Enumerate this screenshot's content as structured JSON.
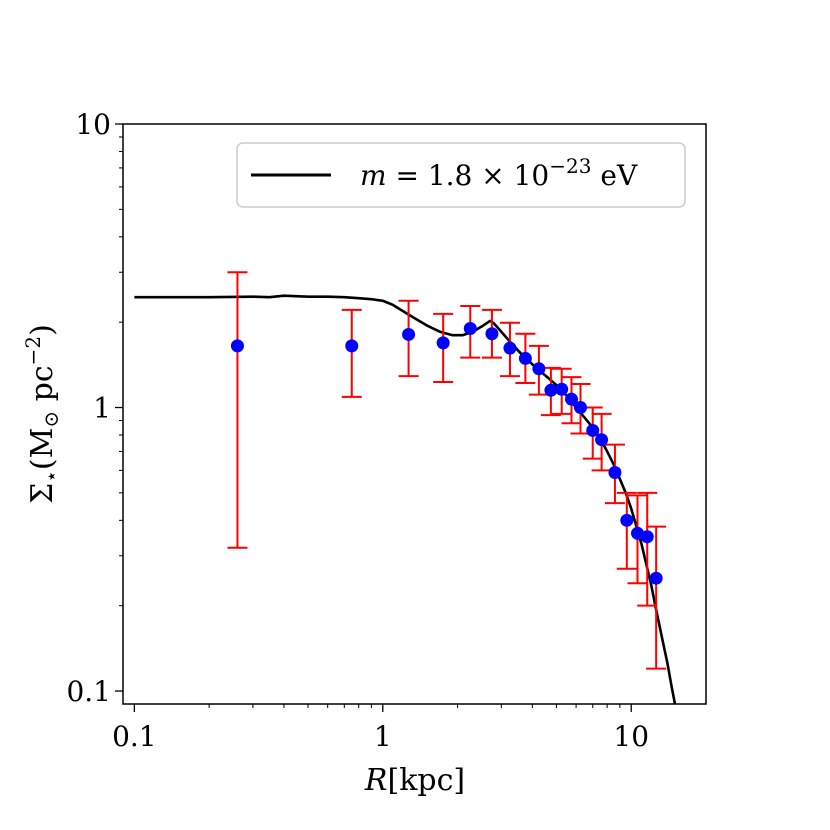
{
  "chart_data": {
    "type": "scatter",
    "xscale": "log",
    "yscale": "log",
    "xlim": [
      0.09,
      20
    ],
    "ylim": [
      0.09,
      10
    ],
    "xticks": [
      {
        "value": 0.1,
        "label": "0.1"
      },
      {
        "value": 1,
        "label": "1"
      },
      {
        "value": 10,
        "label": "10"
      }
    ],
    "yticks": [
      {
        "value": 0.1,
        "label": "0.1"
      },
      {
        "value": 1,
        "label": "1"
      },
      {
        "value": 10,
        "label": "10"
      }
    ],
    "xlabel": {
      "main": "R",
      "unit": "[kpc]"
    },
    "ylabel": {
      "main": "Σ",
      "sub": "⋆",
      "paren": "(M",
      "sun": "⊙",
      "unit": " pc",
      "exp": "−2",
      "close": ")"
    },
    "legend": {
      "position": "top-right",
      "label": {
        "m": "m",
        "eq": " = 1.8 × 10",
        "exp": "−23",
        "unit": " eV"
      }
    },
    "colors": {
      "model": "#000000",
      "points": "#0000ff",
      "errorbars": "#ff0000"
    },
    "series": [
      {
        "name": "m = 1.8 × 10^−23 eV",
        "kind": "line",
        "x": [
          0.1,
          0.15,
          0.2,
          0.3,
          0.35,
          0.4,
          0.5,
          0.6,
          0.7,
          0.8,
          0.9,
          1.0,
          1.1,
          1.3,
          1.5,
          1.7,
          1.9,
          2.1,
          2.3,
          2.5,
          2.7,
          2.8,
          3.0,
          3.3,
          3.6,
          4.0,
          4.5,
          5.0,
          5.5,
          6.0,
          6.5,
          7.0,
          7.5,
          8.0,
          8.5,
          9.0,
          9.5,
          10.0,
          10.5,
          11.0,
          11.5,
          12.0,
          12.5,
          13.0,
          13.5,
          14.0,
          14.5,
          15.0
        ],
        "y": [
          2.45,
          2.45,
          2.45,
          2.46,
          2.45,
          2.48,
          2.46,
          2.46,
          2.45,
          2.43,
          2.41,
          2.38,
          2.3,
          2.1,
          1.95,
          1.85,
          1.8,
          1.8,
          1.85,
          1.93,
          2.02,
          1.98,
          1.85,
          1.68,
          1.55,
          1.42,
          1.3,
          1.2,
          1.1,
          1.0,
          0.92,
          0.85,
          0.78,
          0.7,
          0.63,
          0.56,
          0.5,
          0.44,
          0.38,
          0.33,
          0.28,
          0.24,
          0.2,
          0.17,
          0.145,
          0.125,
          0.105,
          0.09
        ]
      },
      {
        "name": "data",
        "kind": "points",
        "x": [
          0.26,
          0.75,
          1.27,
          1.75,
          2.25,
          2.75,
          3.25,
          3.75,
          4.25,
          4.75,
          5.25,
          5.75,
          6.25,
          7.0,
          7.6,
          8.6,
          9.6,
          10.6,
          11.6,
          12.6
        ],
        "y": [
          1.65,
          1.65,
          1.81,
          1.69,
          1.9,
          1.82,
          1.62,
          1.49,
          1.37,
          1.15,
          1.16,
          1.07,
          1.0,
          0.83,
          0.77,
          0.59,
          0.4,
          0.36,
          0.35,
          0.25
        ],
        "yerr_low": [
          0.32,
          1.09,
          1.29,
          1.23,
          1.5,
          1.5,
          1.29,
          1.22,
          1.11,
          0.94,
          0.95,
          0.88,
          0.81,
          0.66,
          0.6,
          0.46,
          0.27,
          0.24,
          0.2,
          0.12
        ],
        "yerr_high": [
          3.0,
          2.21,
          2.38,
          2.14,
          2.28,
          2.21,
          1.99,
          1.82,
          1.65,
          1.38,
          1.37,
          1.28,
          1.21,
          1.0,
          0.95,
          0.74,
          0.5,
          0.49,
          0.5,
          0.38
        ]
      }
    ]
  }
}
